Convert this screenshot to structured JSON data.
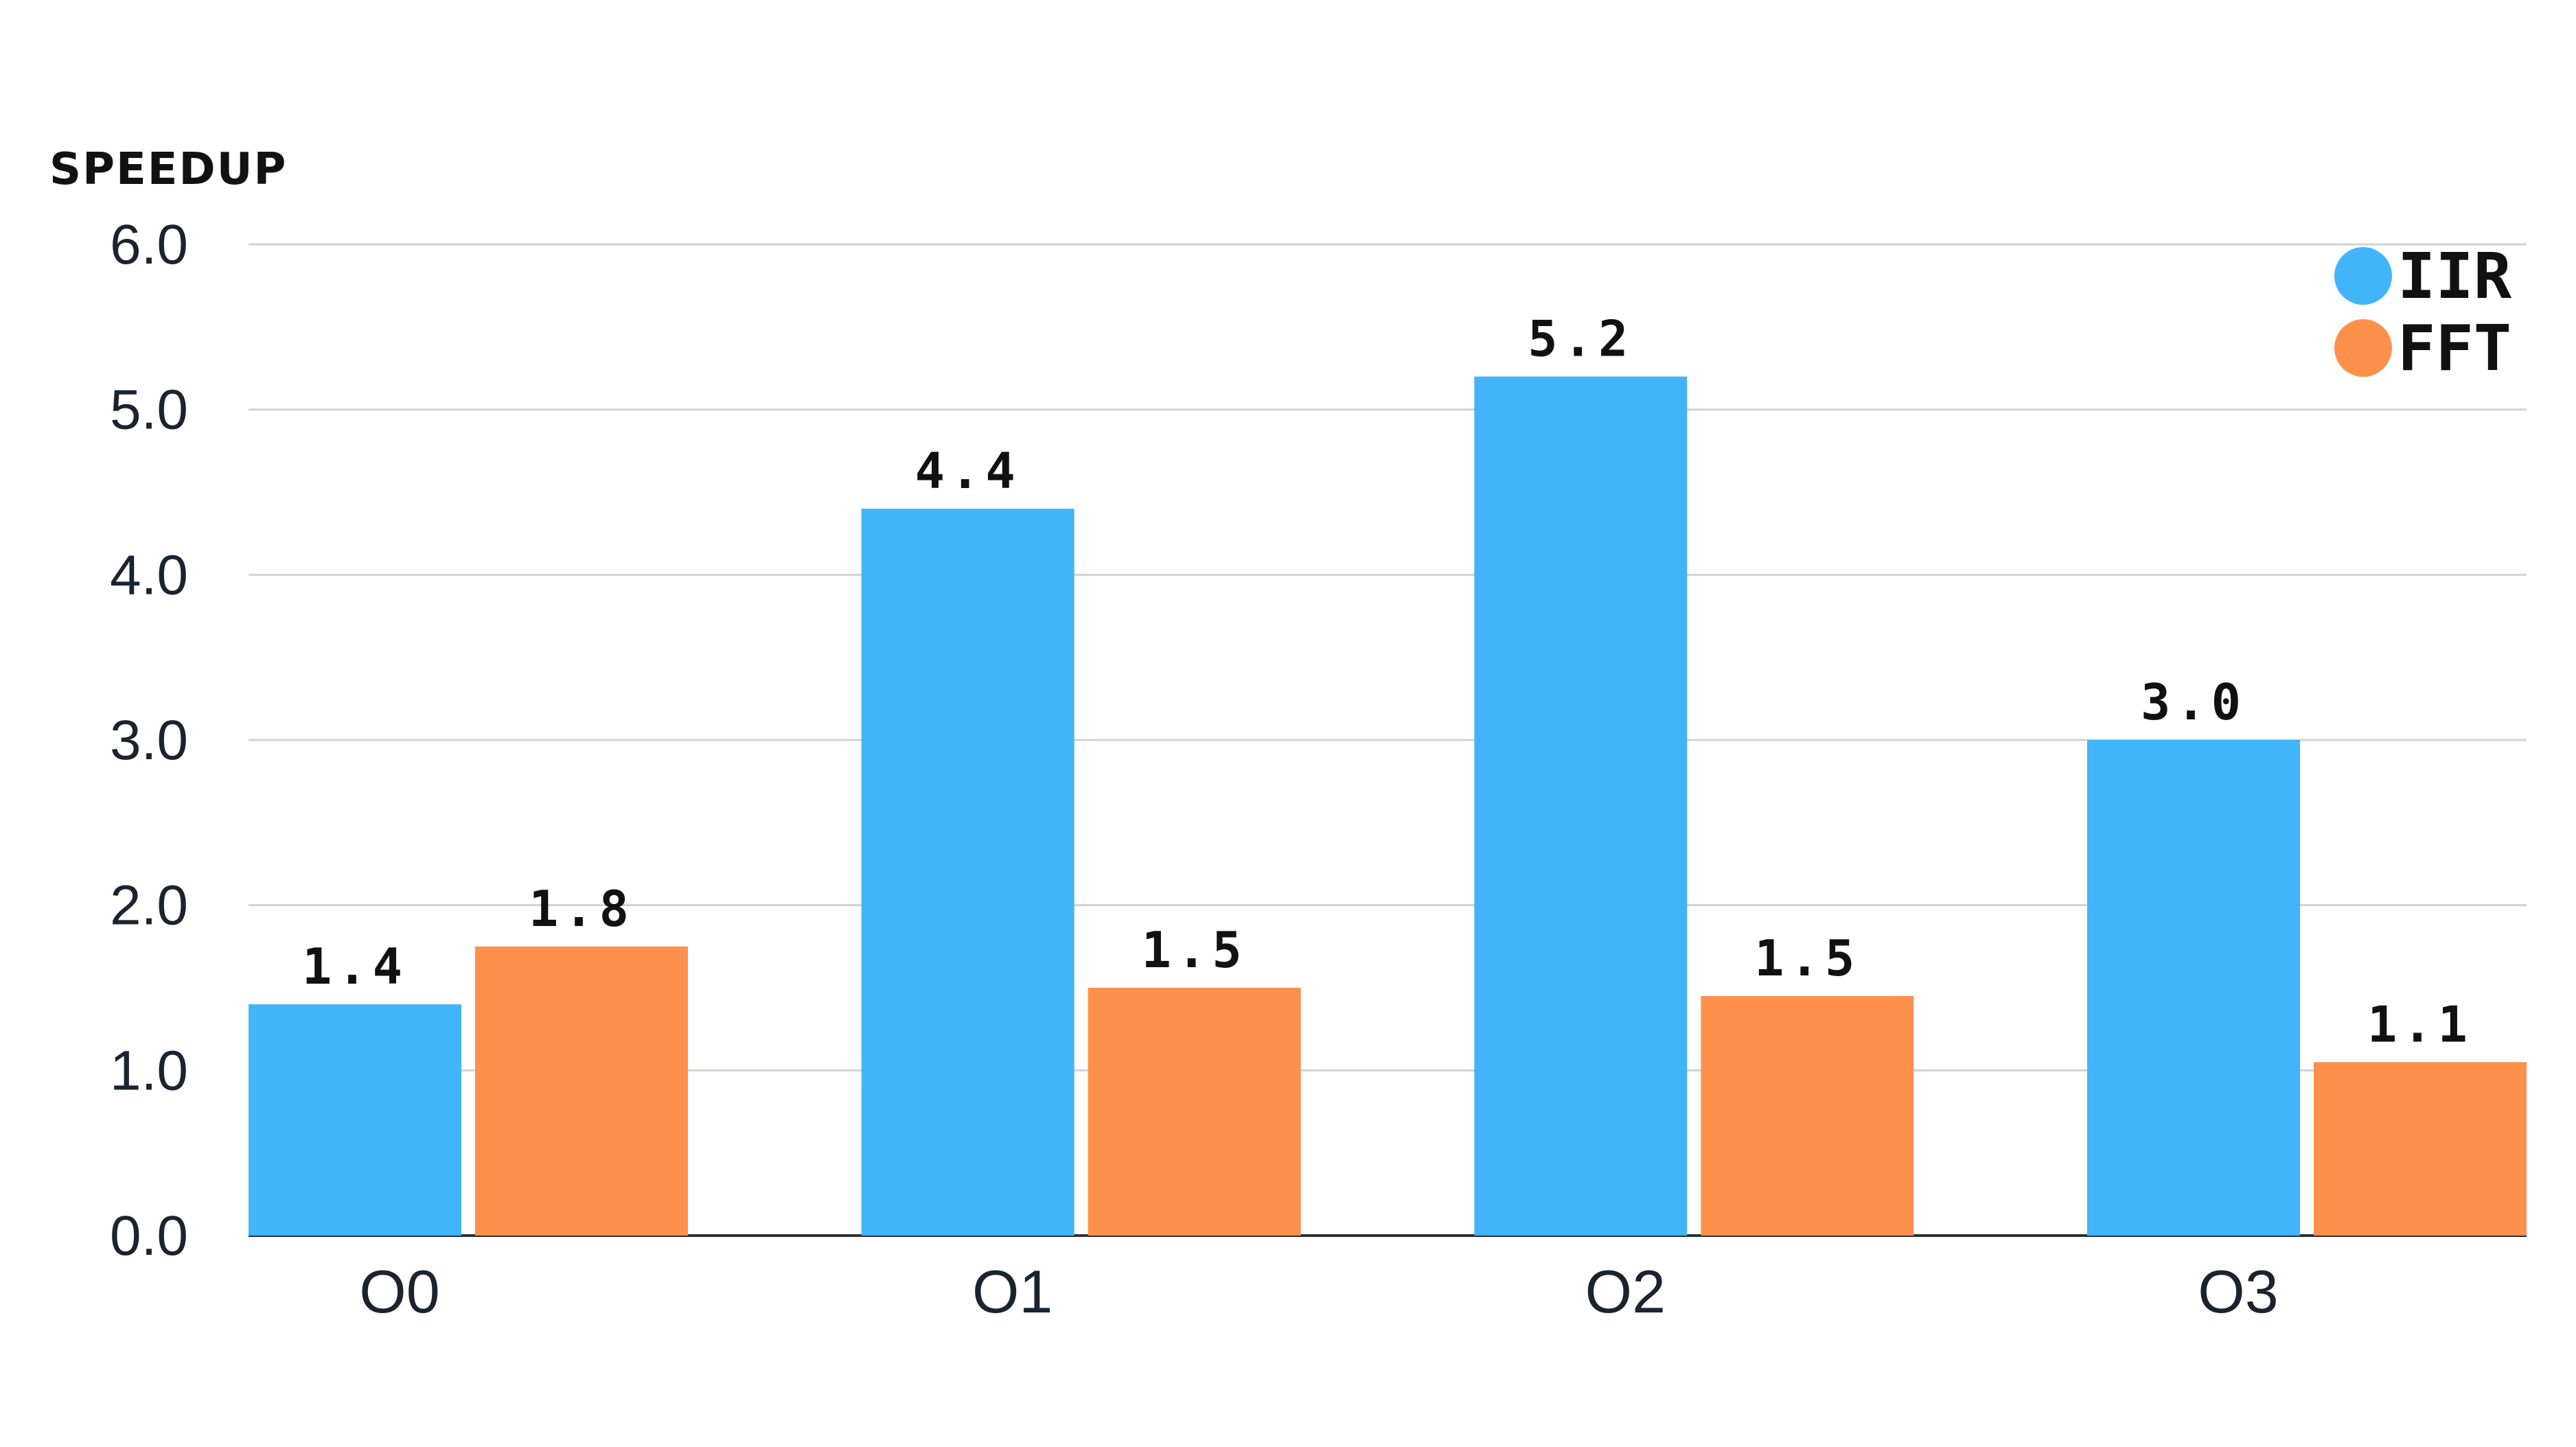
{
  "chart_data": {
    "type": "bar",
    "title": "",
    "xlabel": "",
    "ylabel": "SPEEDUP",
    "categories": [
      "O0",
      "O1",
      "O2",
      "O3"
    ],
    "series": [
      {
        "name": "IIR",
        "color": "#42b4fa",
        "values": [
          1.4,
          4.4,
          5.2,
          3.0
        ],
        "labels": [
          "1.4",
          "4.4",
          "5.2",
          "3.0"
        ]
      },
      {
        "name": "FFT",
        "color": "#fd914c",
        "values": [
          1.75,
          1.5,
          1.45,
          1.05
        ],
        "labels": [
          "1.8",
          "1.5",
          "1.5",
          "1.1"
        ]
      }
    ],
    "ylim": [
      0,
      6
    ],
    "yticks": [
      0,
      1,
      2,
      3,
      4,
      5,
      6
    ],
    "ytick_labels": [
      "0.0",
      "1.0",
      "2.0",
      "3.0",
      "4.0",
      "5.0",
      "6.0"
    ],
    "grid": true,
    "legend_position": "top-right"
  }
}
